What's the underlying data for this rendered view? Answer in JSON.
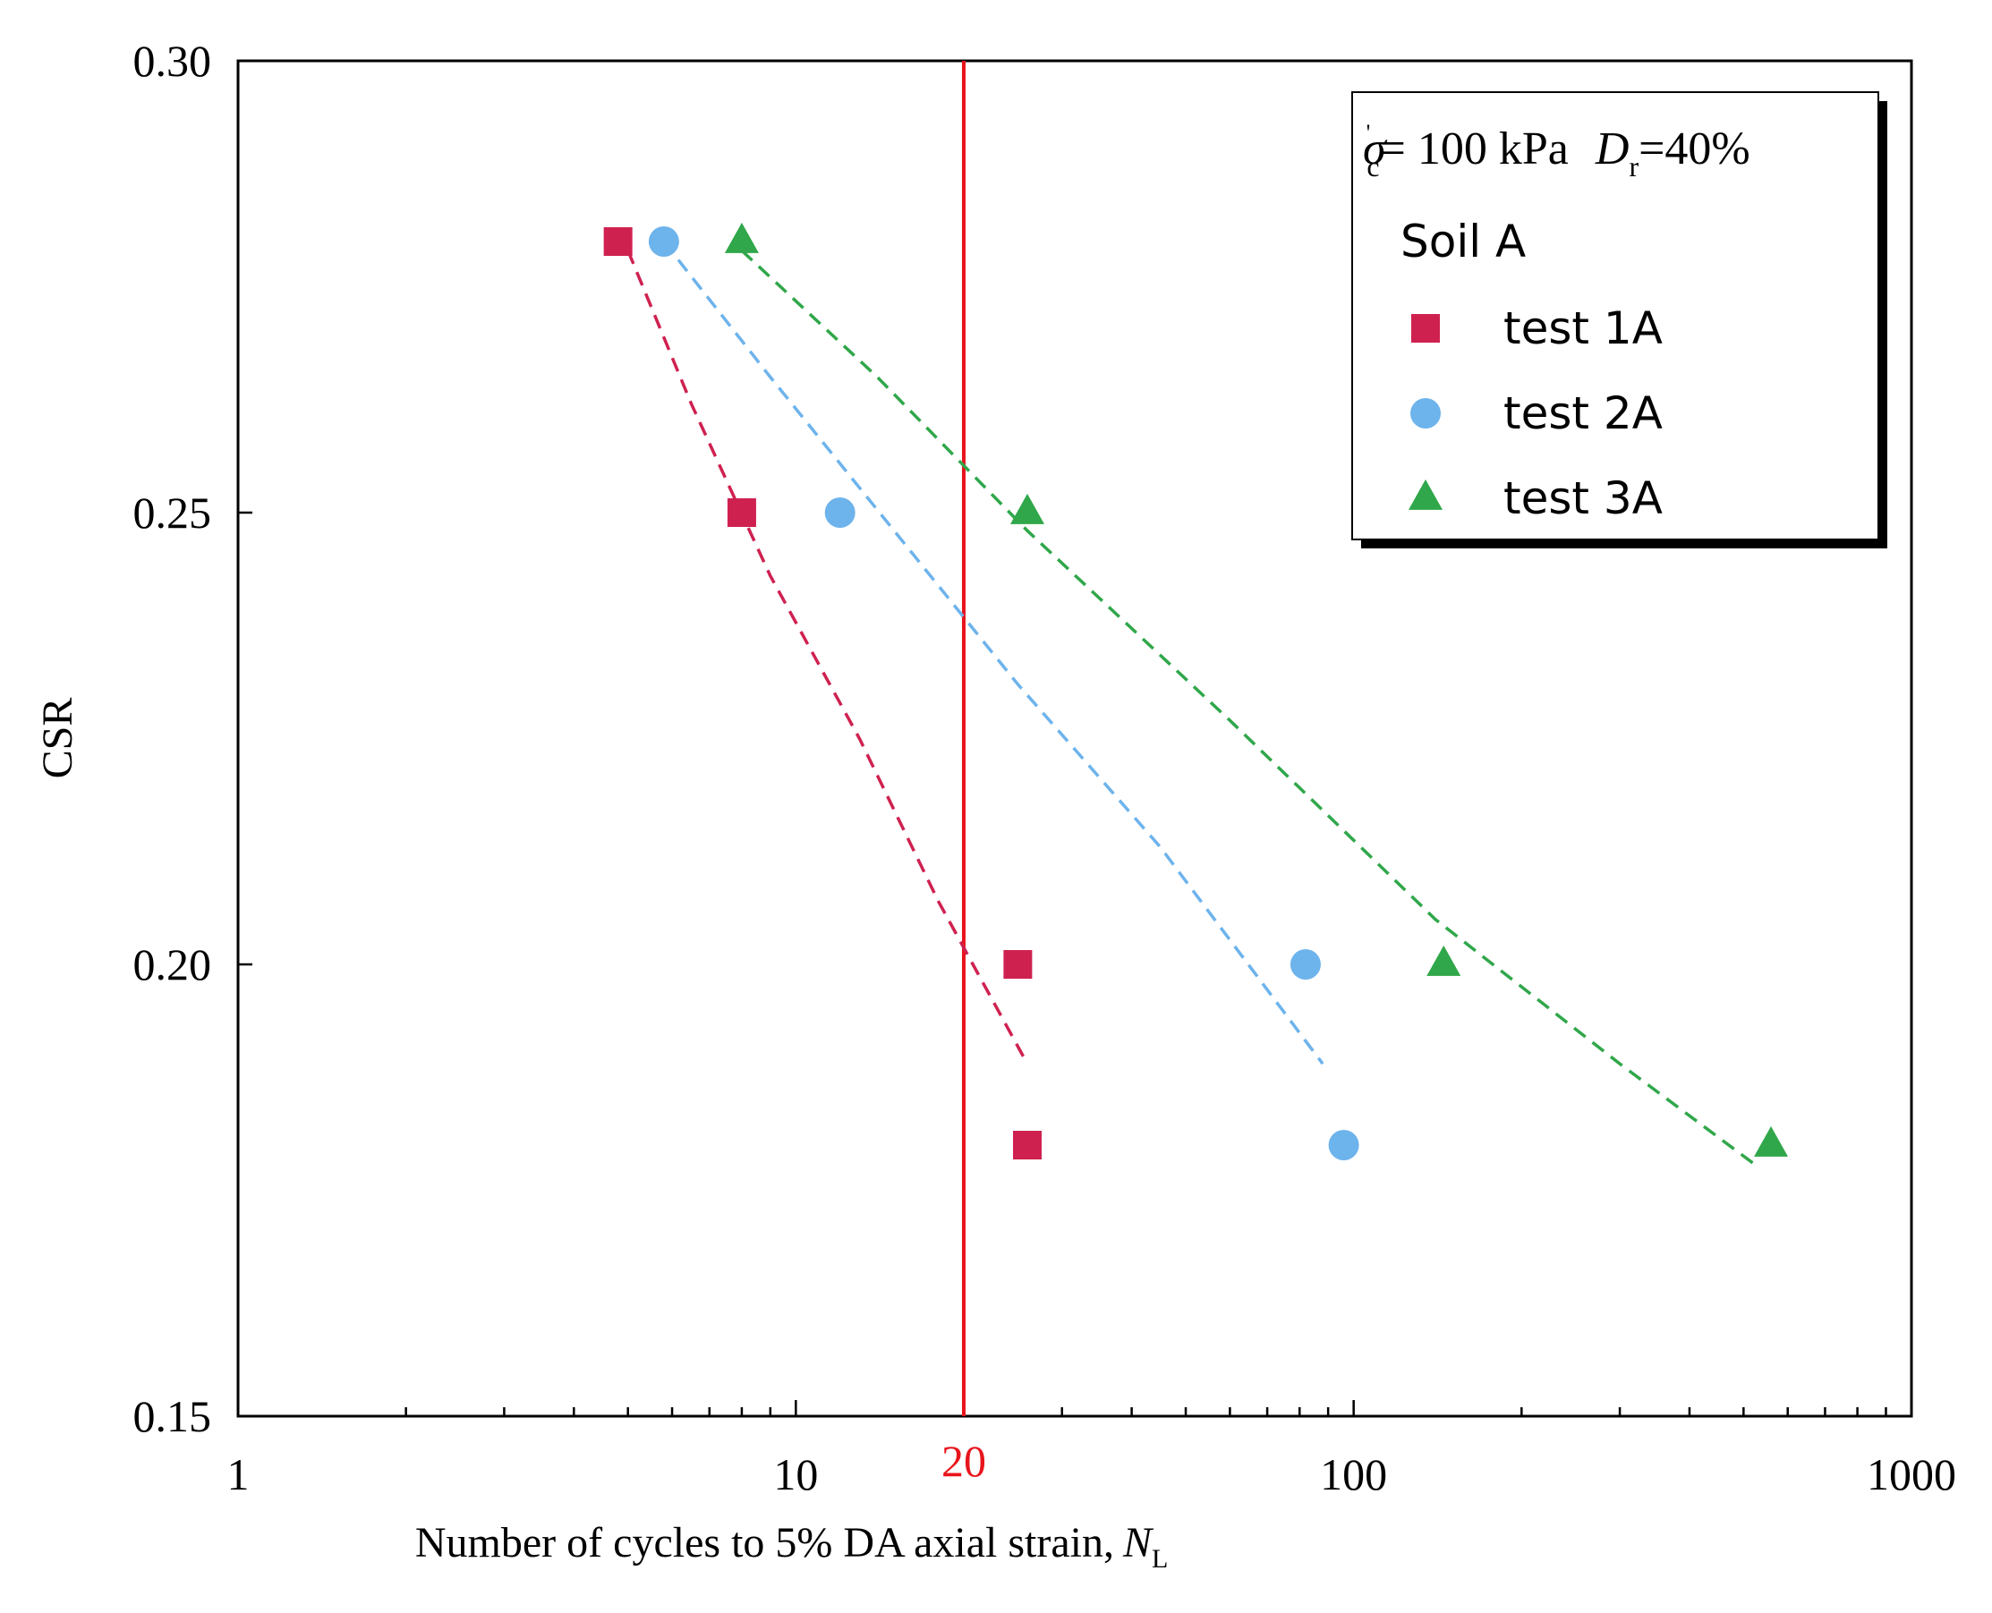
{
  "chart_data": {
    "type": "scatter",
    "title": "",
    "xlabel": "Number of cycles to 5% DA axial strain,",
    "xlabel_var": "N",
    "xlabel_sub": "L",
    "ylabel": "CSR",
    "xscale": "log",
    "xlim": [
      1,
      1000
    ],
    "ylim": [
      0.15,
      0.3
    ],
    "x_ticks": [
      {
        "value": 1,
        "label": "1"
      },
      {
        "value": 10,
        "label": "10"
      },
      {
        "value": 100,
        "label": "100"
      },
      {
        "value": 1000,
        "label": "1000"
      }
    ],
    "y_ticks": [
      {
        "value": 0.15,
        "label": "0.15"
      },
      {
        "value": 0.2,
        "label": "0.20"
      },
      {
        "value": 0.25,
        "label": "0.25"
      },
      {
        "value": 0.3,
        "label": "0.30"
      }
    ],
    "reference_line": {
      "x": 20,
      "label": "20",
      "color": "#e8141c"
    },
    "legend": {
      "position": "top-right",
      "condition_sigma": "σ",
      "condition_sigma_sub": "c",
      "condition_sigma_sup": "'",
      "condition_text": "= 100 kPa",
      "condition_dr": "D",
      "condition_dr_sub": "r",
      "condition_dr_text": "=40%",
      "group_title": "Soil A"
    },
    "series": [
      {
        "name": "test 1A",
        "marker": "square",
        "color": "#cf2150",
        "points": [
          [
            4.8,
            0.28
          ],
          [
            8.0,
            0.25
          ],
          [
            25,
            0.2
          ],
          [
            26,
            0.18
          ]
        ],
        "trend": [
          [
            5.0,
            0.279
          ],
          [
            6.5,
            0.262
          ],
          [
            9.0,
            0.243
          ],
          [
            13,
            0.225
          ],
          [
            18,
            0.207
          ],
          [
            26,
            0.189
          ]
        ]
      },
      {
        "name": "test 2A",
        "marker": "circle",
        "color": "#6db3ec",
        "points": [
          [
            5.8,
            0.28
          ],
          [
            12,
            0.25
          ],
          [
            82,
            0.2
          ],
          [
            96,
            0.18
          ]
        ],
        "trend": [
          [
            5.8,
            0.28
          ],
          [
            9,
            0.265
          ],
          [
            15,
            0.248
          ],
          [
            25,
            0.231
          ],
          [
            45,
            0.213
          ],
          [
            88,
            0.189
          ]
        ]
      },
      {
        "name": "test 3A",
        "marker": "triangle",
        "color": "#30a74a",
        "points": [
          [
            8,
            0.28
          ],
          [
            26,
            0.25
          ],
          [
            145,
            0.2
          ],
          [
            560,
            0.18
          ]
        ],
        "trend": [
          [
            8,
            0.279
          ],
          [
            14,
            0.265
          ],
          [
            26,
            0.248
          ],
          [
            60,
            0.227
          ],
          [
            140,
            0.205
          ],
          [
            300,
            0.189
          ],
          [
            520,
            0.178
          ]
        ]
      }
    ]
  }
}
